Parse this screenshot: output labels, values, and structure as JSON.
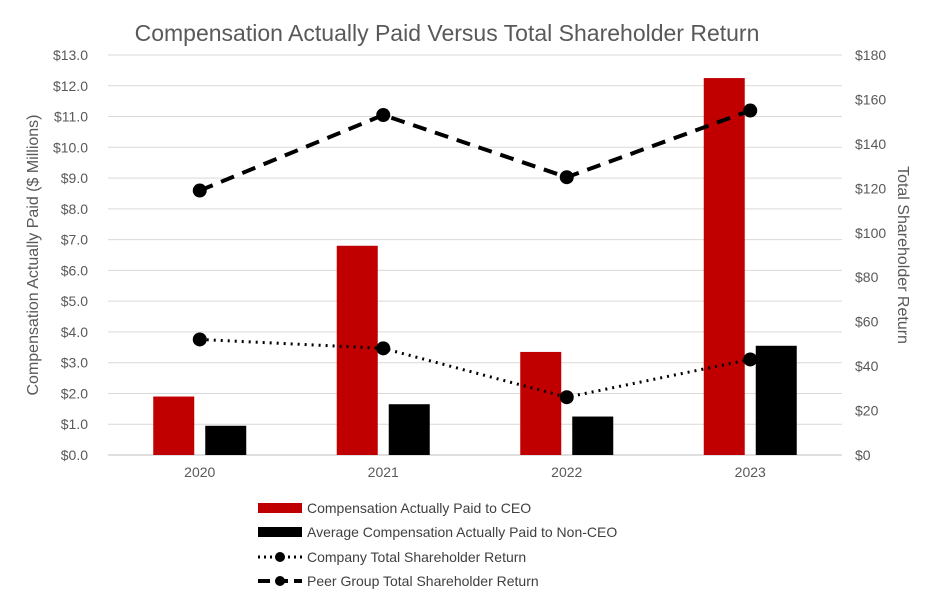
{
  "chart_data": {
    "type": "bar",
    "title": "Compensation Actually Paid Versus Total Shareholder Return",
    "categories": [
      "2020",
      "2021",
      "2022",
      "2023"
    ],
    "ylabel": "Compensation Actually Paid ($ Millions)",
    "y2label": "Total Shareholder Return",
    "ylim": [
      0,
      13
    ],
    "y2lim": [
      0,
      180
    ],
    "yticks": [
      "$0.0",
      "$1.0",
      "$2.0",
      "$3.0",
      "$4.0",
      "$5.0",
      "$6.0",
      "$7.0",
      "$8.0",
      "$9.0",
      "$10.0",
      "$11.0",
      "$12.0",
      "$13.0"
    ],
    "y2ticks": [
      "$0",
      "$20",
      "$40",
      "$60",
      "$80",
      "$100",
      "$120",
      "$140",
      "$160",
      "$180"
    ],
    "grid": true,
    "legend_position": "bottom",
    "bar_series": [
      {
        "name": "Compensation Actually Paid to CEO",
        "values": [
          1.9,
          6.8,
          3.35,
          12.25
        ],
        "color": "#c00000"
      },
      {
        "name": "Average Compensation Actually Paid to Non-CEO",
        "values": [
          0.95,
          1.65,
          1.25,
          3.55
        ],
        "color": "#000000"
      }
    ],
    "line_series": [
      {
        "name": "Company Total Shareholder Return",
        "values": [
          52,
          48,
          26,
          43
        ],
        "axis": "right",
        "style": "dotted",
        "color": "#000000"
      },
      {
        "name": "Peer Group Total Shareholder Return",
        "values": [
          119,
          153,
          125,
          155
        ],
        "axis": "right",
        "style": "dashed",
        "color": "#000000"
      }
    ]
  }
}
